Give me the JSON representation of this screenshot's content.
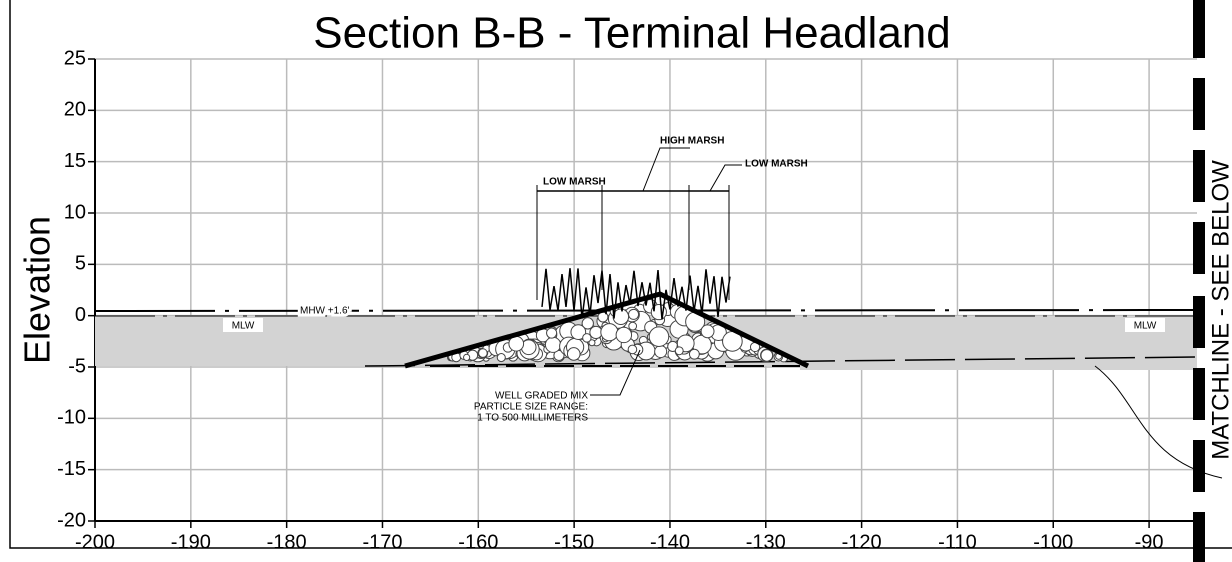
{
  "title": "Section B-B - Terminal Headland",
  "axis": {
    "y_label": "Elevation",
    "xlim": [
      -200,
      -85
    ],
    "ylim": [
      -20,
      25
    ],
    "xticks": [
      -200,
      -190,
      -180,
      -170,
      -160,
      -150,
      -140,
      -130,
      -120,
      -110,
      -100,
      -90
    ],
    "yticks": [
      -20,
      -15,
      -10,
      -5,
      0,
      5,
      10,
      15,
      20,
      25
    ]
  },
  "annotations": {
    "high_marsh": "HIGH MARSH",
    "low_marsh_left": "LOW MARSH",
    "low_marsh_right": "LOW MARSH",
    "mhw": "MHW +1.6'",
    "mlw_left": "MLW",
    "mlw_right": "MLW",
    "mix": [
      "WELL GRADED MIX",
      "PARTICLE SIZE RANGE:",
      "1 TO 500 MILLIMETERS"
    ],
    "matchline": "MATCHLINE - SEE BELOW"
  }
}
